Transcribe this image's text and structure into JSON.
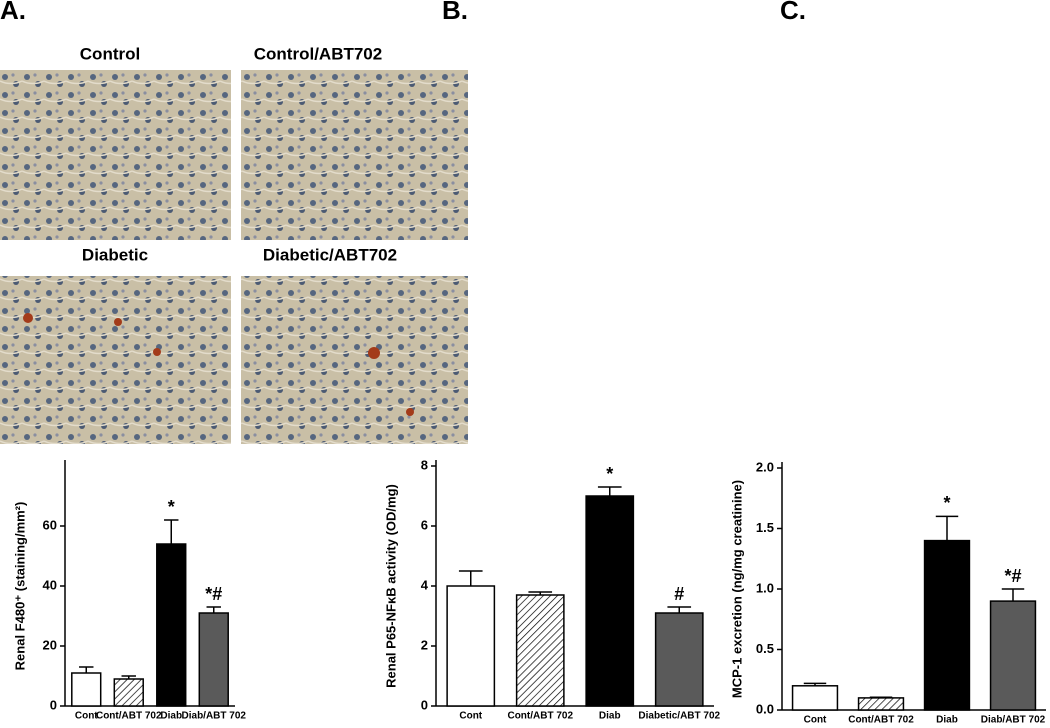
{
  "panels": [
    "A.",
    "B.",
    "C."
  ],
  "images": [
    "Control",
    "Control/ABT702",
    "Diabetic",
    "Diabetic/ABT702"
  ],
  "chart_data": [
    {
      "type": "bar",
      "ylabel": "Renal F480⁺ (staining/mm²)",
      "categories": [
        "Cont",
        "Cont/ABT 702",
        "Diab",
        "Diab/ABT 702"
      ],
      "values": [
        11,
        9,
        54,
        31
      ],
      "errors": [
        2,
        1,
        8,
        2
      ],
      "markers": [
        null,
        null,
        "*",
        "*#"
      ],
      "colors": [
        "#ffffff",
        "#ffffff",
        "#000000",
        "#5a5a5a"
      ],
      "hatched": [
        false,
        true,
        false,
        false
      ],
      "ylim": [
        0,
        80
      ],
      "yticks": [
        0,
        20,
        40,
        60
      ]
    },
    {
      "type": "bar",
      "ylabel": "Renal P65-NFκB activity (OD/mg)",
      "categories": [
        "Cont",
        "Cont/ABT 702",
        "Diab",
        "Diabetic/ABT 702"
      ],
      "values": [
        4.0,
        3.7,
        7.0,
        3.1
      ],
      "errors": [
        0.5,
        0.1,
        0.3,
        0.2
      ],
      "markers": [
        null,
        null,
        "*",
        "#"
      ],
      "colors": [
        "#ffffff",
        "#ffffff",
        "#000000",
        "#5a5a5a"
      ],
      "hatched": [
        false,
        true,
        false,
        false
      ],
      "ylim": [
        0,
        8
      ],
      "yticks": [
        0,
        2,
        4,
        6,
        8
      ]
    },
    {
      "type": "bar",
      "ylabel": "MCP-1 excretion (ng/mg creatinine)",
      "categories": [
        "Cont",
        "Cont/ABT 702",
        "Diab",
        "Diab/ABT 702"
      ],
      "values": [
        0.2,
        0.1,
        1.4,
        0.9
      ],
      "errors": [
        0.02,
        0.005,
        0.2,
        0.1
      ],
      "markers": [
        null,
        null,
        "*",
        "*#"
      ],
      "colors": [
        "#ffffff",
        "#ffffff",
        "#000000",
        "#5a5a5a"
      ],
      "hatched": [
        false,
        true,
        false,
        false
      ],
      "ylim": [
        0,
        2
      ],
      "yticks": [
        {
          "value": 0,
          "label": "0.0"
        },
        {
          "value": 0.5,
          "label": "0.5"
        },
        {
          "value": 1,
          "label": "1.0"
        },
        {
          "value": 1.5,
          "label": "1.5"
        },
        {
          "value": 2,
          "label": "2.0"
        }
      ]
    }
  ]
}
